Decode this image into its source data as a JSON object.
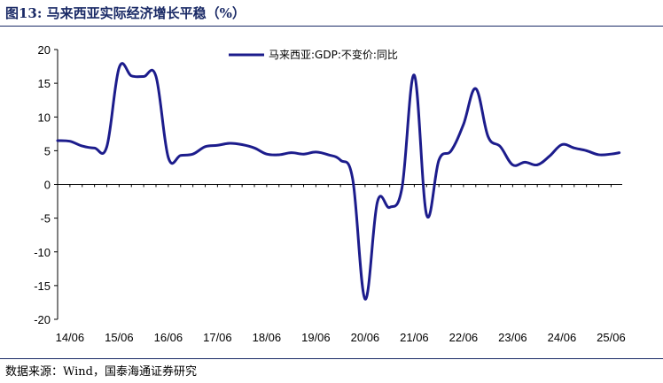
{
  "header": {
    "title": "图13:  马来西亚实际经济增长平稳（%）"
  },
  "footer": {
    "source": "数据来源：Wind，国泰海通证券研究"
  },
  "colors": {
    "series": "#1c1c8c",
    "rule": "#1a2a66"
  },
  "chart_data": {
    "type": "line",
    "title": "",
    "xlabel": "",
    "ylabel": "",
    "ylim": [
      -20,
      20
    ],
    "yticks": [
      -20,
      -15,
      -10,
      -5,
      0,
      5,
      10,
      15,
      20
    ],
    "xticks": [
      "14/06",
      "15/06",
      "16/06",
      "17/06",
      "18/06",
      "19/06",
      "20/06",
      "21/06",
      "22/06",
      "23/06",
      "24/06",
      "25/06"
    ],
    "grid": false,
    "legend_position": "top-center",
    "series": [
      {
        "name": "马来西亚:GDP:不变价:同比",
        "color": "#1c1c8c",
        "points": [
          [
            "2014-03",
            6.5
          ],
          [
            "2014-06",
            6.4
          ],
          [
            "2014-09",
            5.7
          ],
          [
            "2014-12",
            5.4
          ],
          [
            "2015-03",
            5.6
          ],
          [
            "2015-06",
            17.3
          ],
          [
            "2015-09",
            16.1
          ],
          [
            "2015-12",
            16.0
          ],
          [
            "2016-03",
            16.0
          ],
          [
            "2016-06",
            4.0
          ],
          [
            "2016-09",
            4.3
          ],
          [
            "2016-12",
            4.5
          ],
          [
            "2017-03",
            5.6
          ],
          [
            "2017-06",
            5.8
          ],
          [
            "2017-09",
            6.1
          ],
          [
            "2017-12",
            5.9
          ],
          [
            "2018-03",
            5.4
          ],
          [
            "2018-06",
            4.5
          ],
          [
            "2018-09",
            4.4
          ],
          [
            "2018-12",
            4.7
          ],
          [
            "2019-03",
            4.5
          ],
          [
            "2019-06",
            4.8
          ],
          [
            "2019-09",
            4.4
          ],
          [
            "2019-12",
            3.6
          ],
          [
            "2020-03",
            0.7
          ],
          [
            "2020-06",
            -17.0
          ],
          [
            "2020-09",
            -2.6
          ],
          [
            "2020-12",
            -3.4
          ],
          [
            "2021-03",
            -0.5
          ],
          [
            "2021-06",
            16.2
          ],
          [
            "2021-09",
            -4.5
          ],
          [
            "2021-12",
            3.6
          ],
          [
            "2022-03",
            5.0
          ],
          [
            "2022-06",
            8.9
          ],
          [
            "2022-09",
            14.2
          ],
          [
            "2022-12",
            7.1
          ],
          [
            "2023-03",
            5.6
          ],
          [
            "2023-06",
            2.9
          ],
          [
            "2023-09",
            3.3
          ],
          [
            "2023-12",
            2.9
          ],
          [
            "2024-03",
            4.2
          ],
          [
            "2024-06",
            5.9
          ],
          [
            "2024-09",
            5.4
          ],
          [
            "2024-12",
            5.0
          ],
          [
            "2025-03",
            4.4
          ],
          [
            "2025-06",
            4.5
          ],
          [
            "2025-08",
            4.7
          ]
        ]
      }
    ]
  }
}
